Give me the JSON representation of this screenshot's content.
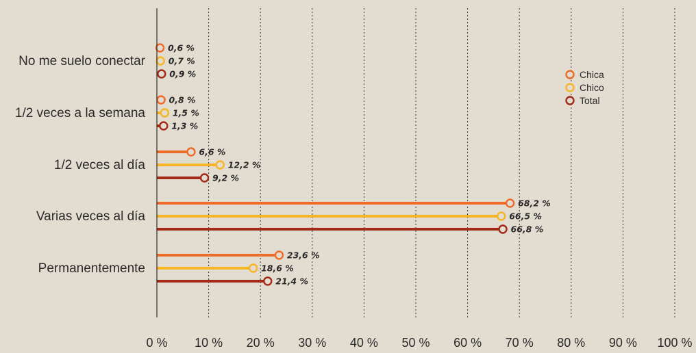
{
  "chart_data": {
    "type": "bar",
    "orientation": "horizontal",
    "style": "lollipop",
    "categories": [
      "No me suelo conectar",
      "1/2 veces a la semana",
      "1/2 veces al día",
      "Varias veces al día",
      "Permanentemente"
    ],
    "series": [
      {
        "name": "Chica",
        "color": "#ef6b2a",
        "values": [
          0.6,
          0.8,
          6.6,
          68.2,
          23.6
        ],
        "labels": [
          "0,6 %",
          "0,8 %",
          "6,6 %",
          "68,2 %",
          "23,6 %"
        ]
      },
      {
        "name": "Chico",
        "color": "#f6b526",
        "values": [
          0.7,
          1.5,
          12.2,
          66.5,
          18.6
        ],
        "labels": [
          "0,7 %",
          "1,5 %",
          "12,2 %",
          "66,5 %",
          "18,6 %"
        ]
      },
      {
        "name": "Total",
        "color": "#a32a18",
        "values": [
          0.9,
          1.3,
          9.2,
          66.8,
          21.4
        ],
        "labels": [
          "0,9 %",
          "1,3 %",
          "9,2 %",
          "66,8 %",
          "21,4 %"
        ]
      }
    ],
    "xlim": [
      0,
      100
    ],
    "xticks": [
      0,
      10,
      20,
      30,
      40,
      50,
      60,
      70,
      80,
      90,
      100
    ],
    "xtick_labels": [
      "0 %",
      "10 %",
      "20 %",
      "30 %",
      "40 %",
      "50 %",
      "60 %",
      "70 %",
      "80 %",
      "90 %",
      "100 %"
    ],
    "grid": "vertical dashed",
    "legend_position": "top-right",
    "background": "#e2ddd0",
    "axis_color": "#2a2a2a"
  }
}
